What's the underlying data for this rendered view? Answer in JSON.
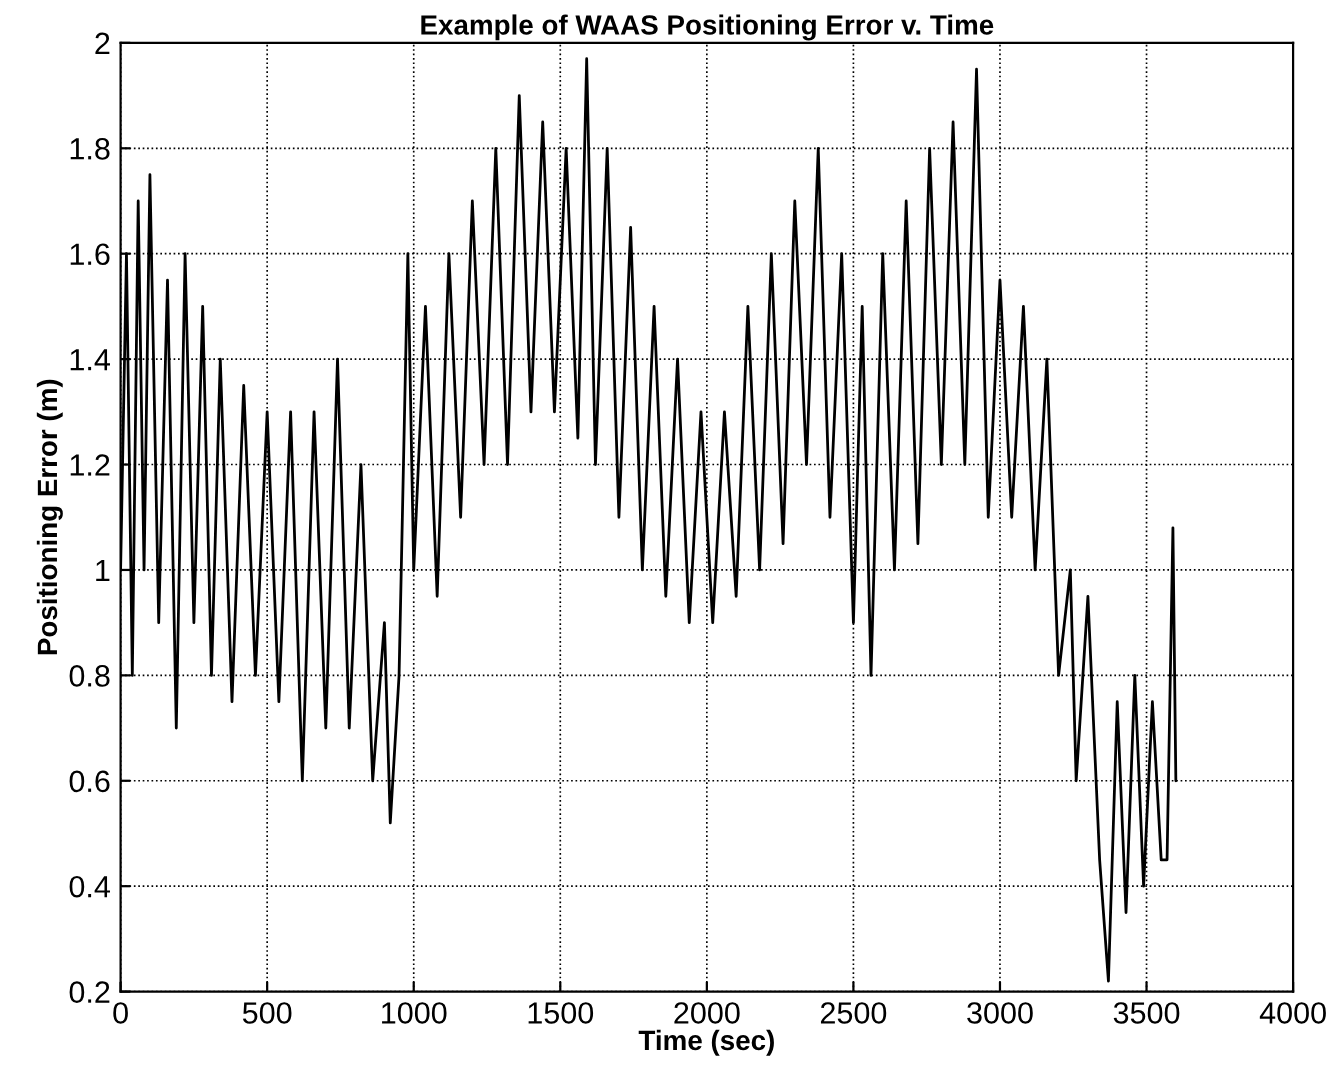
{
  "chart_data": {
    "type": "line",
    "title": "Example of WAAS Positioning Error v. Time",
    "xlabel": "Time (sec)",
    "ylabel": "Positioning Error (m)",
    "x": [
      0,
      20,
      40,
      60,
      80,
      100,
      130,
      160,
      190,
      220,
      250,
      280,
      310,
      340,
      380,
      420,
      460,
      500,
      540,
      580,
      620,
      660,
      700,
      740,
      780,
      820,
      860,
      900,
      920,
      950,
      980,
      1000,
      1040,
      1080,
      1120,
      1160,
      1200,
      1240,
      1280,
      1320,
      1360,
      1400,
      1440,
      1480,
      1520,
      1560,
      1590,
      1620,
      1660,
      1700,
      1740,
      1780,
      1820,
      1860,
      1900,
      1940,
      1980,
      2020,
      2060,
      2100,
      2140,
      2180,
      2220,
      2260,
      2300,
      2340,
      2380,
      2420,
      2460,
      2500,
      2530,
      2560,
      2600,
      2640,
      2680,
      2720,
      2760,
      2800,
      2840,
      2880,
      2920,
      2960,
      3000,
      3040,
      3080,
      3120,
      3160,
      3200,
      3240,
      3260,
      3300,
      3340,
      3370,
      3400,
      3430,
      3460,
      3490,
      3520,
      3550,
      3570,
      3590,
      3600
    ],
    "series": [
      {
        "color": "#000000",
        "values": [
          1.0,
          1.6,
          0.8,
          1.7,
          1.0,
          1.75,
          0.9,
          1.55,
          0.7,
          1.6,
          0.9,
          1.5,
          0.8,
          1.4,
          0.75,
          1.35,
          0.8,
          1.3,
          0.75,
          1.3,
          0.6,
          1.3,
          0.7,
          1.4,
          0.7,
          1.2,
          0.6,
          0.9,
          0.52,
          0.8,
          1.6,
          1.0,
          1.5,
          0.95,
          1.6,
          1.1,
          1.7,
          1.2,
          1.8,
          1.2,
          1.9,
          1.3,
          1.85,
          1.3,
          1.8,
          1.25,
          1.97,
          1.2,
          1.8,
          1.1,
          1.65,
          1.0,
          1.5,
          0.95,
          1.4,
          0.9,
          1.3,
          0.9,
          1.3,
          0.95,
          1.5,
          1.0,
          1.6,
          1.05,
          1.7,
          1.2,
          1.8,
          1.1,
          1.6,
          0.9,
          1.5,
          0.8,
          1.6,
          1.0,
          1.7,
          1.05,
          1.8,
          1.2,
          1.85,
          1.2,
          1.95,
          1.1,
          1.55,
          1.1,
          1.5,
          1.0,
          1.4,
          0.8,
          1.0,
          0.6,
          0.95,
          0.45,
          0.22,
          0.75,
          0.35,
          0.8,
          0.4,
          0.75,
          0.45,
          0.45,
          1.08,
          0.6
        ]
      }
    ],
    "xlim": [
      0,
      4000
    ],
    "xticks": [
      0,
      500,
      1000,
      1500,
      2000,
      2500,
      3000,
      3500,
      4000
    ],
    "ylim": [
      0.2,
      2
    ],
    "yticks": [
      {
        "value": 0.2,
        "label": "0.2"
      },
      {
        "value": 0.4,
        "label": "0.4"
      },
      {
        "value": 0.6,
        "label": "0.6"
      },
      {
        "value": 0.8,
        "label": "0.8"
      },
      1,
      {
        "value": 1.2,
        "label": "1.2"
      },
      {
        "value": 1.4,
        "label": "1.4"
      },
      {
        "value": 1.6,
        "label": "1.6"
      },
      {
        "value": 1.8,
        "label": "1.8"
      },
      2
    ],
    "grid": true,
    "line_style": "solid"
  }
}
